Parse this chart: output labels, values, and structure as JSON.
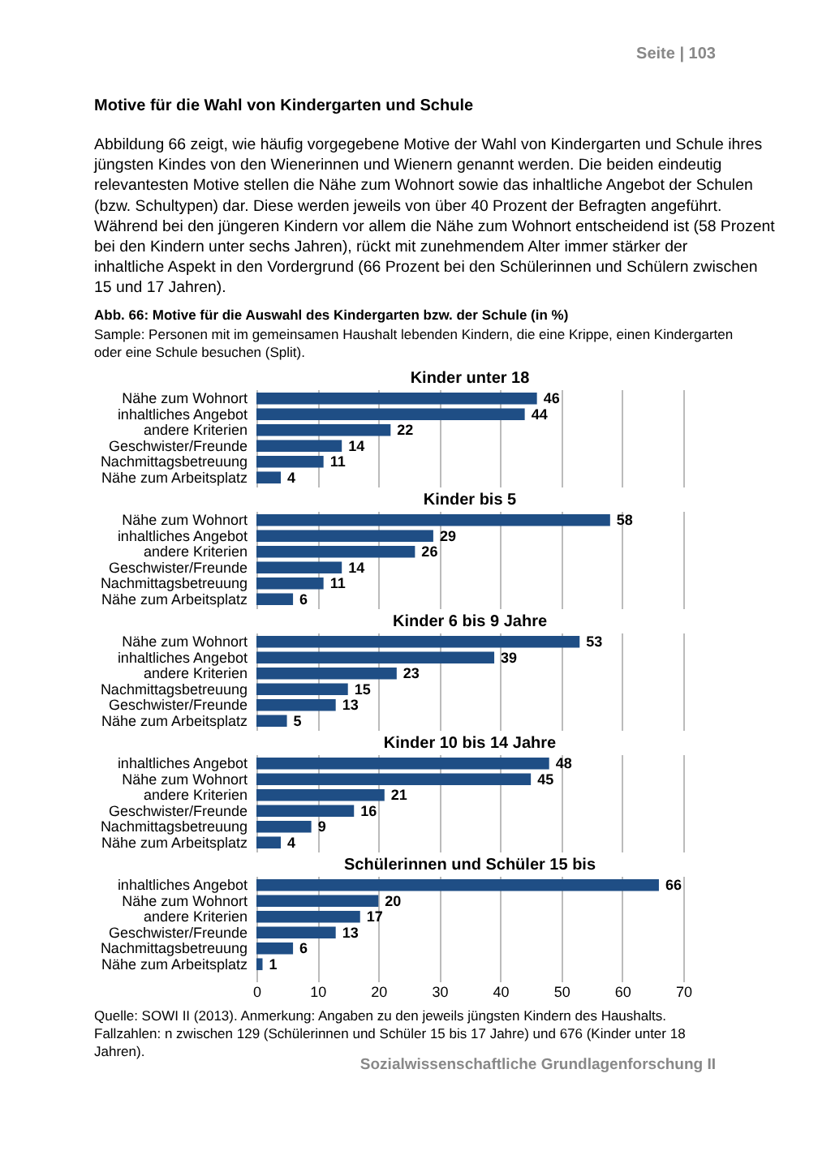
{
  "chart_data": [
    {
      "type": "bar",
      "orientation": "horizontal",
      "title": "Kinder unter 18",
      "categories": [
        "Nähe zum Wohnort",
        "inhaltliches Angebot",
        "andere Kriterien",
        "Geschwister/Freunde",
        "Nachmittagsbetreuung",
        "Nähe zum Arbeitsplatz"
      ],
      "values": [
        46,
        44,
        22,
        14,
        11,
        4
      ],
      "color": "#1f4e85",
      "data_labels": true,
      "xlim": [
        0,
        70
      ],
      "xticks": [
        0,
        10,
        20,
        30,
        40,
        50,
        60,
        70
      ],
      "grid": "x",
      "tick_labels": "y",
      "annotations": [
        "Seite | 103",
        "Motive für die Wahl von Kindergarten und Schule",
        "Abbildung 66 zeigt, wie häufig vorgegebene Motive der Wahl von Kindergarten und Schule ihres jüngsten Kindes von den Wienerinnen und Wienern genannt werden. Die beiden eindeutig relevantesten Motive stellen die Nähe zum Wohnort sowie das inhaltliche Angebot der Schulen (bzw. Schultypen) dar. Diese werden jeweils von über 40 Prozent der Befragten angeführt. Während bei den jüngeren Kindern vor allem die Nähe zum Wohnort entscheidend ist (58 Prozent bei den Kindern unter sechs Jahren), rückt mit zunehmendem Alter immer stärker der inhaltliche Aspekt in den Vordergrund (66 Prozent bei den Schülerinnen und Schülern zwischen 15 und 17 Jahren).",
        "Abb. 66: Motive für die Auswahl des Kindergarten bzw. der Schule (in %)",
        "Sample: Personen mit im gemeinsamen Haushalt lebenden Kindern, die eine Krippe, einen Kindergarten oder eine Schule besuchen (Split)."
      ]
    },
    {
      "type": "bar",
      "orientation": "horizontal",
      "title": "Kinder bis 5",
      "categories": [
        "Nähe zum Wohnort",
        "inhaltliches Angebot",
        "andere Kriterien",
        "Geschwister/Freunde",
        "Nachmittagsbetreuung",
        "Nähe zum Arbeitsplatz"
      ],
      "values": [
        58,
        29,
        26,
        14,
        11,
        6
      ],
      "color": "#1f4e85",
      "data_labels": true,
      "xlim": [
        0,
        70
      ],
      "xticks": [
        0,
        10,
        20,
        30,
        40,
        50,
        60,
        70
      ],
      "grid": "x",
      "tick_labels": "y"
    },
    {
      "type": "bar",
      "orientation": "horizontal",
      "title": "Kinder 6 bis 9 Jahre",
      "categories": [
        "Nähe zum Wohnort",
        "inhaltliches Angebot",
        "andere Kriterien",
        "Nachmittagsbetreuung",
        "Geschwister/Freunde",
        "Nähe zum Arbeitsplatz"
      ],
      "values": [
        53,
        39,
        23,
        15,
        13,
        5
      ],
      "color": "#1f4e85",
      "data_labels": true,
      "xlim": [
        0,
        70
      ],
      "xticks": [
        0,
        10,
        20,
        30,
        40,
        50,
        60,
        70
      ],
      "grid": "x",
      "tick_labels": "y"
    },
    {
      "type": "bar",
      "orientation": "horizontal",
      "title": "Kinder 10 bis 14 Jahre",
      "categories": [
        "inhaltliches Angebot",
        "Nähe zum Wohnort",
        "andere Kriterien",
        "Geschwister/Freunde",
        "Nachmittagsbetreuung",
        "Nähe zum Arbeitsplatz"
      ],
      "values": [
        48,
        45,
        21,
        16,
        9,
        4
      ],
      "color": "#1f4e85",
      "data_labels": true,
      "xlim": [
        0,
        70
      ],
      "xticks": [
        0,
        10,
        20,
        30,
        40,
        50,
        60,
        70
      ],
      "grid": "x",
      "tick_labels": "y"
    },
    {
      "type": "bar",
      "orientation": "horizontal",
      "title": "Schülerinnen und Schüler 15 bis",
      "categories": [
        "inhaltliches Angebot",
        "Nähe zum Wohnort",
        "andere Kriterien",
        "Geschwister/Freunde",
        "Nachmittagsbetreuung",
        "Nähe zum Arbeitsplatz"
      ],
      "values": [
        66,
        20,
        17,
        13,
        6,
        1
      ],
      "color": "#1f4e85",
      "data_labels": true,
      "xlim": [
        0,
        70
      ],
      "xticks": [
        0,
        10,
        20,
        30,
        40,
        50,
        60,
        70
      ],
      "grid": "x",
      "annotations": [
        "Quelle: SOWI II (2013). Anmerkung: Angaben zu den jeweils jüngsten Kindern des Haushalts. Fallzahlen: n zwischen 129 (Schülerinnen und Schüler 15 bis 17 Jahre) und 676 (Kinder unter 18 Jahren).",
        "Sozialwissenschaftliche Grundlagenforschung II"
      ]
    }
  ]
}
